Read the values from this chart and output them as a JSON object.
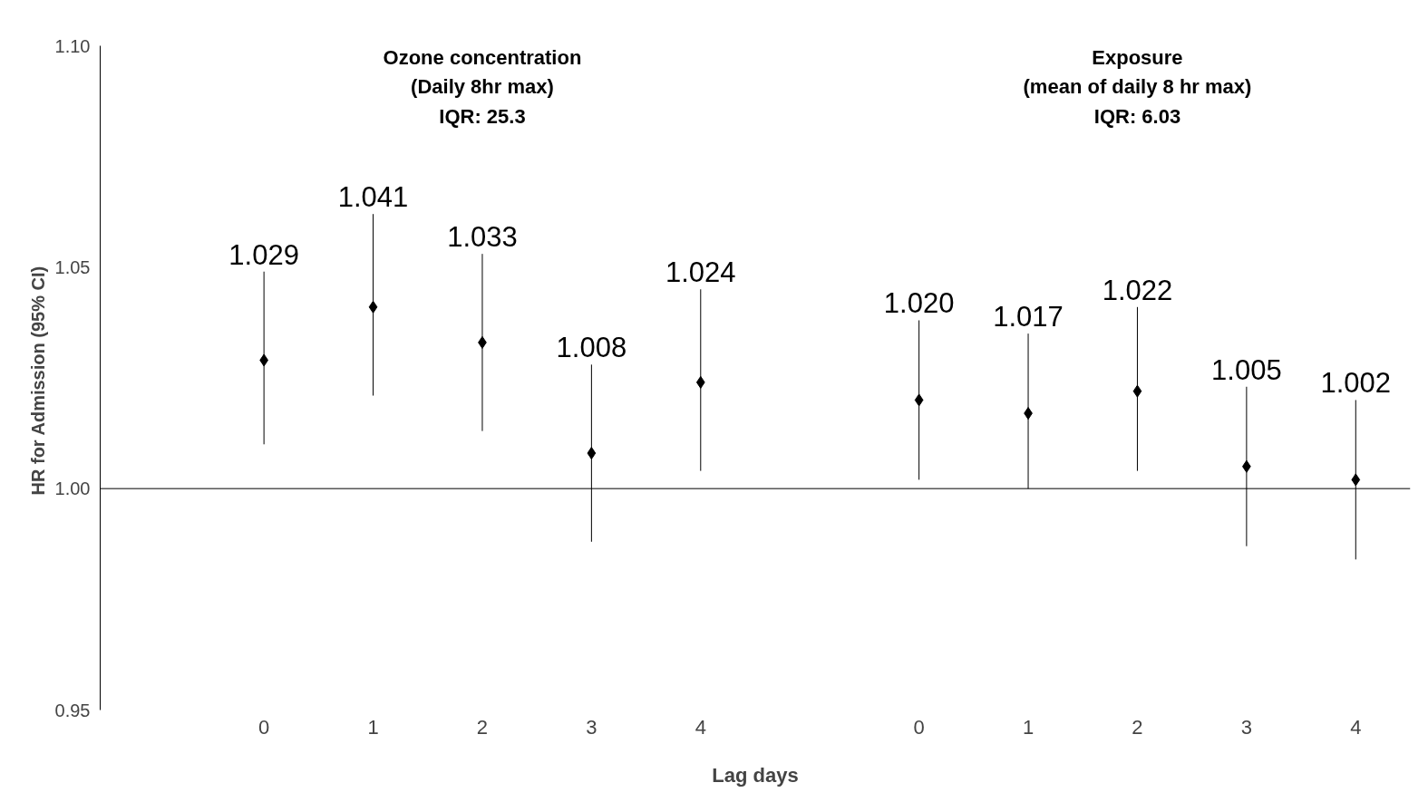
{
  "chart_data": {
    "type": "scatter",
    "ylabel": "HR for  Admission (95% CI)",
    "xlabel": "Lag days",
    "categories": [
      null,
      "0",
      "1",
      "2",
      "3",
      "4",
      null,
      "0",
      "1",
      "2",
      "3",
      "4"
    ],
    "values": [
      null,
      1.029,
      1.041,
      1.033,
      1.008,
      1.024,
      null,
      1.02,
      1.017,
      1.022,
      1.005,
      1.002
    ],
    "errors": [
      null,
      [
        1.01,
        1.049
      ],
      [
        1.021,
        1.062
      ],
      [
        1.013,
        1.053
      ],
      [
        0.988,
        1.028
      ],
      [
        1.004,
        1.045
      ],
      null,
      [
        1.002,
        1.038
      ],
      [
        1.0,
        1.035
      ],
      [
        1.004,
        1.041
      ],
      [
        0.987,
        1.023
      ],
      [
        0.984,
        1.02
      ]
    ],
    "value_labels": [
      null,
      "1.029",
      "1.041",
      "1.033",
      "1.008",
      "1.024",
      null,
      "1.020",
      "1.017",
      "1.022",
      "1.005",
      "1.002"
    ],
    "color": "#000000",
    "marker": "diamond",
    "grid": false,
    "ylim": [
      0.95,
      1.1
    ],
    "yticks": [
      0.95,
      {
        "value": 1.0,
        "label": "1.00"
      },
      1.05,
      {
        "value": 1.1,
        "label": "1.10"
      }
    ],
    "ref_lines": [
      {
        "axis": "y",
        "value": 1.0,
        "color": "#000000"
      }
    ],
    "annotations": [
      "Ozone concentration\n(Daily 8hr max)\nIQR: 25.3",
      "Exposure\n(mean of daily 8 hr max)\nIQR: 6.03"
    ]
  }
}
